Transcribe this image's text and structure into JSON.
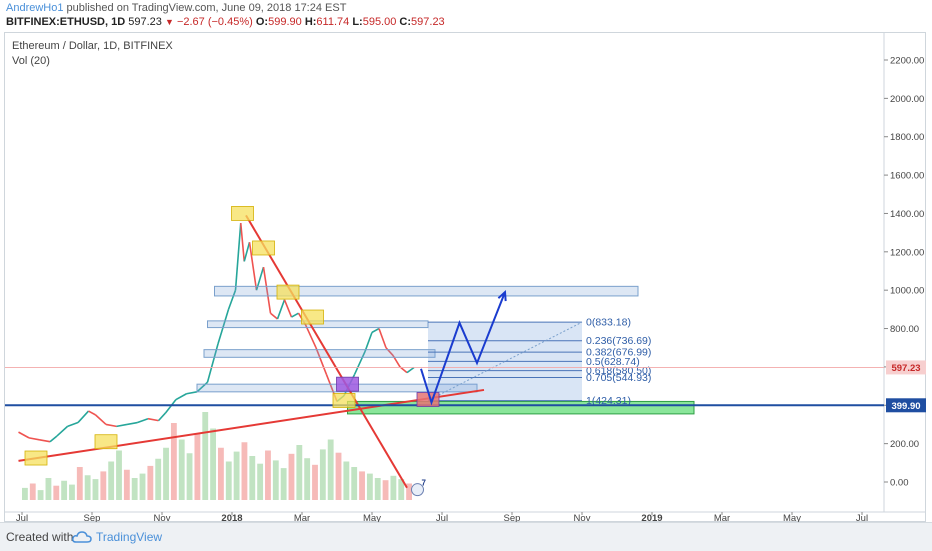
{
  "header": {
    "author": "AndrewHo1",
    "published_text": "published on TradingView.com, June 09, 2018 17:24 EST",
    "symbol": "BITFINEX:ETHUSD, 1D",
    "last": "597.23",
    "change": "−2.67 (−0.45%)",
    "o_label": "O:",
    "o_value": "599.90",
    "h_label": "H:",
    "h_value": "611.74",
    "l_label": "L:",
    "l_value": "595.00",
    "c_label": "C:",
    "c_value": "597.23"
  },
  "chart_title": "Ethereum / Dollar, 1D, BITFINEX",
  "volume_title": "Vol (20)",
  "footer": {
    "created_with": "Created with",
    "brand": "TradingView"
  },
  "icons": {
    "decrease_marker": "down-triangle-icon",
    "brand_logo": "tradingview-cloud-icon"
  },
  "chart_data": {
    "type": "candlestick",
    "title": "Ethereum / Dollar, 1D, BITFINEX",
    "y_ticks": [
      "2200.00",
      "2000.00",
      "1800.00",
      "1600.00",
      "1400.00",
      "1200.00",
      "1000.00",
      "800.00",
      "600.00",
      "400.00",
      "200.00",
      "0.00"
    ],
    "ylim": [
      -100,
      2300
    ],
    "x_ticks": [
      {
        "label": "Jul",
        "t": 0
      },
      {
        "label": "Sep",
        "t": 2
      },
      {
        "label": "Nov",
        "t": 4
      },
      {
        "label": "2018",
        "t": 6
      },
      {
        "label": "Mar",
        "t": 8
      },
      {
        "label": "May",
        "t": 10
      },
      {
        "label": "Jul",
        "t": 12
      },
      {
        "label": "Sep",
        "t": 14
      },
      {
        "label": "Nov",
        "t": 16
      },
      {
        "label": "2019",
        "t": 18
      },
      {
        "label": "Mar",
        "t": 20
      },
      {
        "label": "May",
        "t": 22
      },
      {
        "label": "Jul",
        "t": 24
      }
    ],
    "price_label_current": "597.23",
    "price_label_support": "399.90",
    "current_price": 597.23,
    "support_price": 399.9,
    "price_path": [
      [
        -0.1,
        260
      ],
      [
        0.2,
        230
      ],
      [
        0.5,
        220
      ],
      [
        0.8,
        210
      ],
      [
        1.0,
        240
      ],
      [
        1.3,
        290
      ],
      [
        1.6,
        310
      ],
      [
        1.9,
        370
      ],
      [
        2.1,
        350
      ],
      [
        2.4,
        300
      ],
      [
        2.7,
        290
      ],
      [
        3.0,
        300
      ],
      [
        3.3,
        310
      ],
      [
        3.6,
        330
      ],
      [
        3.9,
        320
      ],
      [
        4.1,
        360
      ],
      [
        4.4,
        430
      ],
      [
        4.7,
        460
      ],
      [
        5.0,
        470
      ],
      [
        5.3,
        520
      ],
      [
        5.6,
        720
      ],
      [
        5.9,
        900
      ],
      [
        6.1,
        1000
      ],
      [
        6.25,
        1350
      ],
      [
        6.35,
        1150
      ],
      [
        6.5,
        1250
      ],
      [
        6.7,
        1000
      ],
      [
        6.9,
        1120
      ],
      [
        7.1,
        880
      ],
      [
        7.3,
        850
      ],
      [
        7.5,
        950
      ],
      [
        7.7,
        860
      ],
      [
        7.9,
        880
      ],
      [
        8.1,
        820
      ],
      [
        8.4,
        700
      ],
      [
        8.7,
        560
      ],
      [
        9.0,
        420
      ],
      [
        9.2,
        450
      ],
      [
        9.5,
        560
      ],
      [
        9.8,
        680
      ],
      [
        10.0,
        780
      ],
      [
        10.2,
        800
      ],
      [
        10.4,
        700
      ],
      [
        10.6,
        660
      ],
      [
        10.8,
        600
      ],
      [
        11.0,
        570
      ],
      [
        11.2,
        597
      ]
    ],
    "volume_bars": [
      22,
      30,
      18,
      40,
      26,
      35,
      28,
      60,
      45,
      38,
      52,
      70,
      90,
      55,
      40,
      48,
      62,
      75,
      95,
      140,
      110,
      85,
      120,
      160,
      130,
      95,
      70,
      88,
      105,
      80,
      66,
      90,
      72,
      58,
      84,
      100,
      76,
      64,
      92,
      110,
      86,
      70,
      60,
      52,
      48,
      40,
      36,
      44,
      38,
      30
    ],
    "fibonacci_levels": [
      {
        "ratio": "0",
        "price": 833.18,
        "label": "0(833.18)"
      },
      {
        "ratio": "0.236",
        "price": 736.69,
        "label": "0.236(736.69)"
      },
      {
        "ratio": "0.382",
        "price": 676.99,
        "label": "0.382(676.99)"
      },
      {
        "ratio": "0.5",
        "price": 628.74,
        "label": "0.5(628.74)"
      },
      {
        "ratio": "0.618",
        "price": 580.5,
        "label": "0.618(580.50)"
      },
      {
        "ratio": "0.705",
        "price": 544.93,
        "label": "0.705(544.93)"
      },
      {
        "ratio": "1",
        "price": 424.31,
        "label": "1(424.31)"
      }
    ],
    "zones": [
      {
        "name": "resistance-zone-1000",
        "t0": 5.5,
        "t1": 17.6,
        "p0": 970,
        "p1": 1020
      },
      {
        "name": "resistance-zone-800",
        "t0": 5.3,
        "t1": 11.6,
        "p0": 805,
        "p1": 840
      },
      {
        "name": "resistance-zone-650",
        "t0": 5.2,
        "t1": 11.8,
        "p0": 650,
        "p1": 690
      },
      {
        "name": "resistance-zone-480",
        "t0": 5.0,
        "t1": 13.0,
        "p0": 470,
        "p1": 510
      },
      {
        "name": "support-zone-400",
        "t0": 9.3,
        "t1": 19.2,
        "p0": 355,
        "p1": 420
      }
    ],
    "highlight_boxes": [
      {
        "name": "peak-box",
        "t": 6.3,
        "p": 1400,
        "color": "#f6e05e"
      },
      {
        "name": "lower-high-box",
        "t": 6.9,
        "p": 1220,
        "color": "#f6e05e"
      },
      {
        "name": "box-1000",
        "t": 7.6,
        "p": 990,
        "color": "#f6e05e"
      },
      {
        "name": "box-860",
        "t": 8.3,
        "p": 860,
        "color": "#f6e05e"
      },
      {
        "name": "box-430",
        "t": 9.2,
        "p": 425,
        "color": "#f6e05e"
      },
      {
        "name": "box-180",
        "t": 2.4,
        "p": 210,
        "color": "#f6e05e"
      },
      {
        "name": "box-120",
        "t": 0.4,
        "p": 125,
        "color": "#f6e05e"
      },
      {
        "name": "purple-box",
        "t": 9.3,
        "p": 510,
        "color": "#9f59e0"
      },
      {
        "name": "red-target-box",
        "t": 11.6,
        "p": 430,
        "color": "#e57373"
      }
    ],
    "trend_lines": [
      {
        "name": "downtrend-line",
        "color": "#e53935",
        "points": [
          [
            6.4,
            1390
          ],
          [
            11.0,
            -30
          ]
        ]
      },
      {
        "name": "uptrend-line",
        "color": "#e53935",
        "points": [
          [
            -0.1,
            110
          ],
          [
            13.2,
            480
          ]
        ]
      }
    ],
    "projection_path": [
      [
        11.4,
        590
      ],
      [
        11.7,
        415
      ],
      [
        12.5,
        830
      ],
      [
        13.0,
        620
      ],
      [
        13.8,
        990
      ]
    ],
    "fib_projection_box": {
      "t0": 11.6,
      "t1": 16.0,
      "p0": 424.31,
      "p1": 833.18
    }
  }
}
